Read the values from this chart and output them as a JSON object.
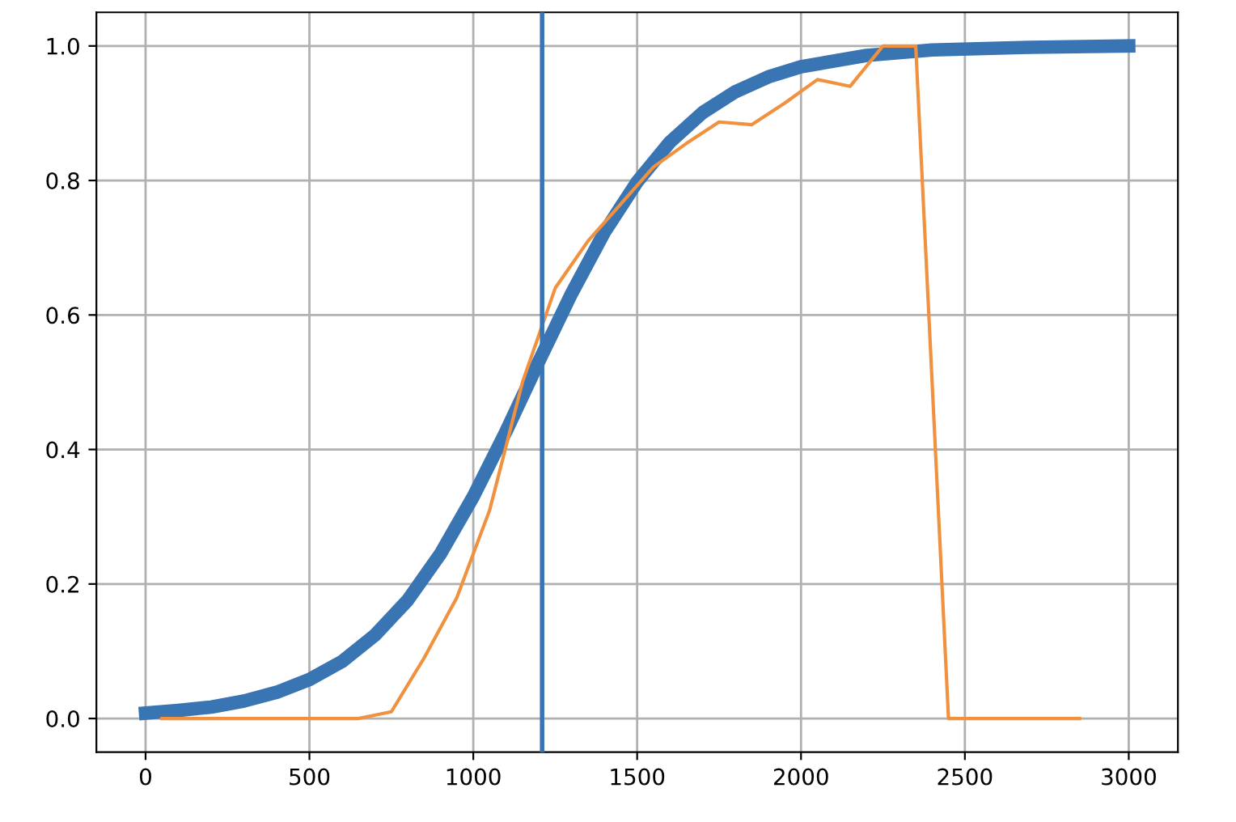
{
  "chart_data": {
    "type": "line",
    "series": [
      {
        "color": "#3a75b3",
        "x": [
          0,
          100,
          200,
          300,
          400,
          500,
          600,
          700,
          800,
          900,
          1000,
          1100,
          1200,
          1300,
          1400,
          1500,
          1600,
          1700,
          1800,
          1900,
          2000,
          2200,
          2400,
          2700,
          3000
        ],
        "values": [
          0.008,
          0.012,
          0.017,
          0.026,
          0.039,
          0.058,
          0.085,
          0.124,
          0.176,
          0.245,
          0.33,
          0.427,
          0.531,
          0.632,
          0.723,
          0.798,
          0.857,
          0.901,
          0.932,
          0.954,
          0.969,
          0.986,
          0.994,
          0.998,
          1.0
        ]
      },
      {
        "color": "#f0913f",
        "x": [
          50,
          150,
          250,
          350,
          450,
          550,
          650,
          750,
          850,
          950,
          1050,
          1150,
          1250,
          1350,
          1450,
          1550,
          1650,
          1750,
          1850,
          1950,
          2050,
          2150,
          2250,
          2350,
          2450,
          2550,
          2650,
          2750,
          2850
        ],
        "values": [
          0,
          0,
          0,
          0,
          0,
          0,
          0,
          0.01,
          0.09,
          0.18,
          0.31,
          0.5,
          0.64,
          0.71,
          0.765,
          0.82,
          0.855,
          0.887,
          0.883,
          0.915,
          0.95,
          0.94,
          1.0,
          1.0,
          0,
          0,
          0,
          0,
          0
        ]
      }
    ],
    "ref_lines": [
      {
        "axis": "x",
        "value": 1210,
        "color": "#3a75b3"
      }
    ],
    "xlim": [
      -150,
      3150
    ],
    "ylim": [
      -0.05,
      1.05
    ],
    "xticks": [
      0,
      500,
      1000,
      1500,
      2000,
      2500,
      3000
    ],
    "yticks": [
      {
        "value": 0,
        "label": "0.0"
      },
      {
        "value": 0.2,
        "label": "0.2"
      },
      {
        "value": 0.4,
        "label": "0.4"
      },
      {
        "value": 0.6,
        "label": "0.6"
      },
      {
        "value": 0.8,
        "label": "0.8"
      },
      {
        "value": 1.0,
        "label": "1.0"
      }
    ],
    "grid": true
  }
}
